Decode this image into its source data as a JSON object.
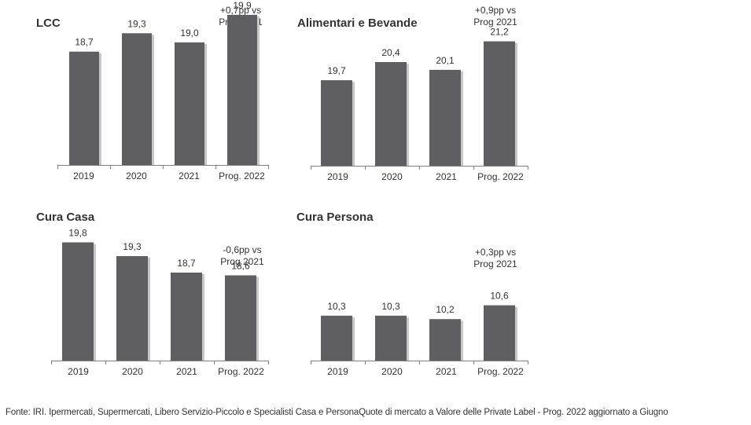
{
  "colors": {
    "bar": "#5f5f61",
    "text": "#333333",
    "axis": "#808080"
  },
  "chart_data": [
    {
      "type": "bar",
      "title": "LCC",
      "note": [
        "+0,7pp vs",
        "Prog 2021"
      ],
      "categories": [
        "2019",
        "2020",
        "2021",
        "Prog. 2022"
      ],
      "values": [
        18.7,
        19.3,
        19.0,
        19.9
      ],
      "value_labels": [
        "18,7",
        "19,3",
        "19,0",
        "19,9"
      ]
    },
    {
      "type": "bar",
      "title": "Alimentari  e Bevande",
      "note": [
        "+0,9pp vs",
        "Prog 2021"
      ],
      "categories": [
        "2019",
        "2020",
        "2021",
        "Prog. 2022"
      ],
      "values": [
        19.7,
        20.4,
        20.1,
        21.2
      ],
      "value_labels": [
        "19,7",
        "20,4",
        "20,1",
        "21,2"
      ]
    },
    {
      "type": "bar",
      "title": "Cura Casa",
      "note": [
        "-0,6pp vs",
        "Prog 2021"
      ],
      "categories": [
        "2019",
        "2020",
        "2021",
        "Prog. 2022"
      ],
      "values": [
        19.8,
        19.3,
        18.7,
        18.6
      ],
      "value_labels": [
        "19,8",
        "19,3",
        "18,7",
        "18,6"
      ]
    },
    {
      "type": "bar",
      "title": "Cura Persona",
      "note": [
        "+0,3pp vs",
        "Prog 2021"
      ],
      "categories": [
        "2019",
        "2020",
        "2021",
        "Prog. 2022"
      ],
      "values": [
        10.3,
        10.3,
        10.2,
        10.6
      ],
      "value_labels": [
        "10,3",
        "10,3",
        "10,2",
        "10,6"
      ]
    }
  ],
  "source": "Fonte: IRI. Ipermercati, Supermercati, Libero Servizio-Piccolo e Specialisti Casa e PersonaQuote di mercato a Valore delle Private Label - Prog. 2022 aggiornato a Giugno"
}
